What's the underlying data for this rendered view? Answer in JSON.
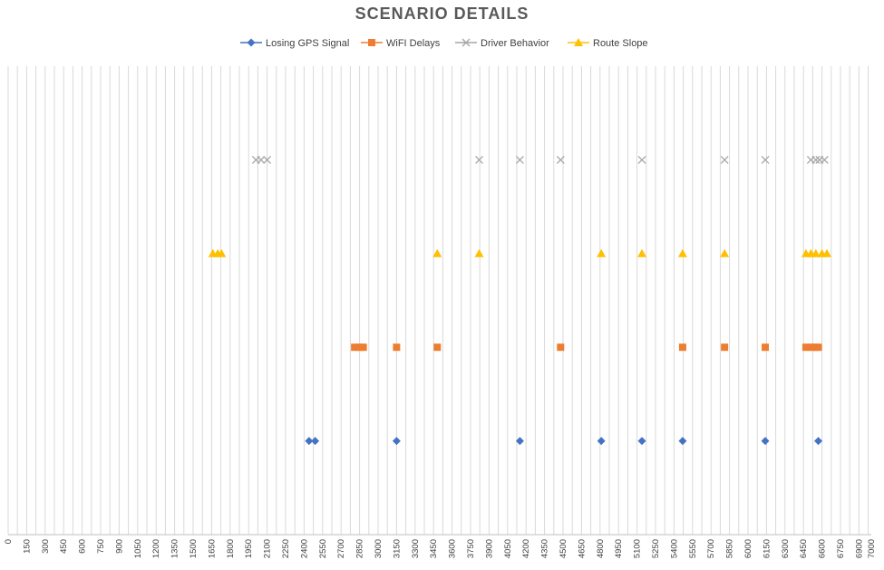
{
  "chart_data": {
    "type": "scatter",
    "title": "SCENARIO DETAILS",
    "xlabel": "",
    "ylabel": "",
    "xlim": [
      0,
      7000
    ],
    "x_tick_step": 150,
    "x_ticks": [
      0,
      150,
      300,
      450,
      600,
      750,
      900,
      1050,
      1200,
      1350,
      1500,
      1650,
      1800,
      1950,
      2100,
      2250,
      2400,
      2550,
      2700,
      2850,
      3000,
      3150,
      3300,
      3450,
      3600,
      3750,
      3900,
      4050,
      4200,
      4350,
      4500,
      4650,
      4800,
      4950,
      5100,
      5250,
      5400,
      5550,
      5700,
      5850,
      6000,
      6150,
      6300,
      6450,
      6600,
      6750,
      6900,
      7000
    ],
    "x_tick_labels": [
      "0",
      "150",
      "300",
      "450",
      "600",
      "750",
      "900",
      "1050",
      "1200",
      "1350",
      "1500",
      "1650",
      "1800",
      "1950",
      "2100",
      "2250",
      "2400",
      "2550",
      "2700",
      "2850",
      "3000",
      "3150",
      "3300",
      "3450",
      "3600",
      "3750",
      "3900",
      "4050",
      "4200",
      "4350",
      "4500",
      "4650",
      "4800",
      "4950",
      "5100",
      "5250",
      "5400",
      "5550",
      "5700",
      "5850",
      "6000",
      "6150",
      "6300",
      "6450",
      "6600",
      "6750",
      "6900",
      "7000"
    ],
    "ylim": [
      0,
      5
    ],
    "grid": "vertical",
    "legend_position": "top",
    "series": [
      {
        "name": "Losing GPS Signal",
        "color": "#4472C4",
        "marker": "diamond",
        "y": 1,
        "x": [
          2440,
          2490,
          3150,
          4150,
          4810,
          5140,
          5470,
          6140,
          6570
        ]
      },
      {
        "name": "WiFI Delays",
        "color": "#ED7D31",
        "marker": "square",
        "y": 2,
        "x": [
          2810,
          2850,
          2880,
          3150,
          3480,
          4480,
          5470,
          5810,
          6140,
          6470,
          6510,
          6540,
          6570
        ]
      },
      {
        "name": "Driver Behavior",
        "color": "#A5A5A5",
        "marker": "x",
        "y": 4,
        "x": [
          2010,
          2050,
          2100,
          3820,
          4150,
          4480,
          5140,
          5810,
          6140,
          6510,
          6550,
          6580,
          6620
        ]
      },
      {
        "name": "Route Slope",
        "color": "#FFC000",
        "marker": "triangle",
        "y": 3,
        "x": [
          1660,
          1700,
          1730,
          3480,
          3820,
          4810,
          5140,
          5470,
          5810,
          6470,
          6510,
          6550,
          6600,
          6640
        ]
      }
    ]
  }
}
